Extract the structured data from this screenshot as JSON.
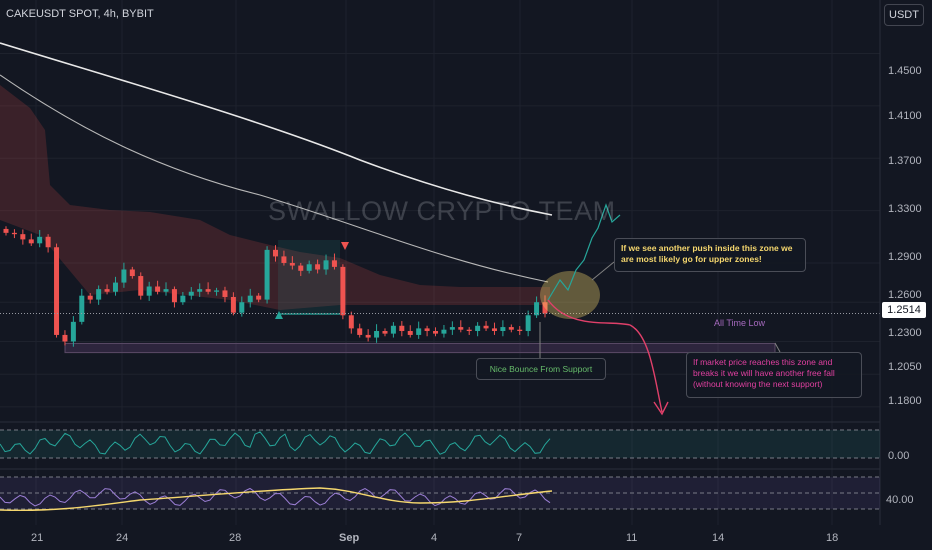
{
  "header": {
    "symbol": "CAKEUSDT SPOT, 4h, BYBIT",
    "currency_button": "USDT"
  },
  "price_axis": {
    "ticks": [
      "1.4500",
      "1.4100",
      "1.3700",
      "1.3300",
      "1.2900",
      "1.2600",
      "1.2300",
      "1.2050",
      "1.1800"
    ],
    "current_price": "1.2514"
  },
  "indicator_axis": {
    "rsi_tick": "0.00",
    "second_tick": "40.00"
  },
  "time_axis": {
    "ticks": [
      "21",
      "24",
      "28",
      "Sep",
      "4",
      "7",
      "11",
      "14",
      "18"
    ]
  },
  "watermark": "SWALLOW CRYPTO TEAM",
  "annotations": {
    "upper_zone": "If we see another push inside this zone we are most likely go for upper zones!",
    "support_bounce": "Nice Bounce From Support",
    "breakdown": "If market price reaches this zone and breaks it we will have another free fall (without knowing the next support)",
    "all_time_low": "All Time Low"
  },
  "colors": {
    "background": "#131722",
    "up": "#26a69a",
    "down": "#ef5350",
    "ma_white": "#e0e0e0",
    "zone": "#a569bd",
    "note_yellow": "#f5d76e",
    "note_green": "#66bb6a",
    "note_pink": "#e040a0"
  },
  "chart_data": {
    "type": "candlestick",
    "y_range": [
      1.17,
      1.468
    ],
    "current_price": 1.2514,
    "support_zone": [
      1.2215,
      1.2285
    ],
    "candles_close": [
      1.313,
      1.312,
      1.308,
      1.305,
      1.31,
      1.302,
      1.235,
      1.23,
      1.245,
      1.265,
      1.262,
      1.27,
      1.268,
      1.275,
      1.285,
      1.28,
      1.265,
      1.272,
      1.268,
      1.27,
      1.26,
      1.265,
      1.268,
      1.27,
      1.268,
      1.269,
      1.264,
      1.252,
      1.26,
      1.265,
      1.262,
      1.3,
      1.295,
      1.29,
      1.288,
      1.284,
      1.289,
      1.285,
      1.292,
      1.287,
      1.25,
      1.24,
      1.235,
      1.233,
      1.238,
      1.236,
      1.242,
      1.238,
      1.235,
      1.24,
      1.238,
      1.236,
      1.239,
      1.241,
      1.239,
      1.238,
      1.242,
      1.24,
      1.238,
      1.241,
      1.239,
      1.238,
      1.25,
      1.26,
      1.2514
    ]
  }
}
